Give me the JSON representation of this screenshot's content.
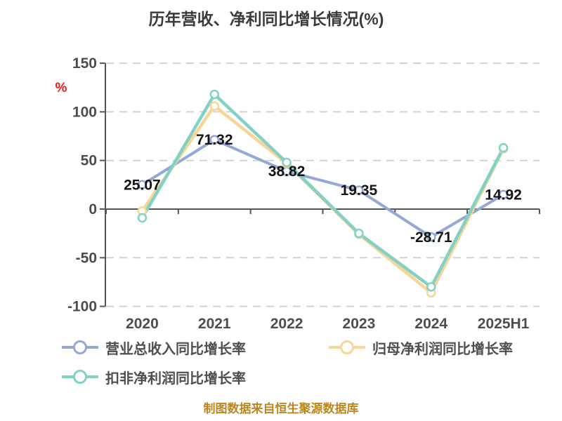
{
  "title": "历年营收、净利同比增长情况(%)",
  "y_axis_unit": "%",
  "caption": "制图数据来自恒生聚源数据库",
  "colors": {
    "revenue_line": "#93a8d6",
    "net_profit_line": "#f7d596",
    "non_gaap_line": "#82d1c7",
    "axis_line": "#555555",
    "grid_line": "#d2d2d2",
    "tick_text": "#4d4d4d",
    "data_label_text": "#141414",
    "legend_text": "#4f4f4f",
    "title_text": "#3b3b3b",
    "unit_text": "#e31c1c",
    "caption_text": "#bd861c",
    "marker_fill": "#ffffff"
  },
  "chart_data": {
    "type": "line",
    "title": "历年营收、净利同比增长情况(%)",
    "categories": [
      "2020",
      "2021",
      "2022",
      "2023",
      "2024",
      "2025H1"
    ],
    "series": [
      {
        "name": "营业总收入同比增长率",
        "color": "#93a8d6",
        "values": [
          25.07,
          71.32,
          38.82,
          19.35,
          -28.71,
          14.92
        ],
        "data_labels": true
      },
      {
        "name": "归母净利润同比增长率",
        "color": "#f7d596",
        "values": [
          -2,
          106,
          47,
          -26,
          -86,
          62
        ],
        "data_labels": false
      },
      {
        "name": "扣非净利润同比增长率",
        "color": "#82d1c7",
        "values": [
          -9,
          118,
          48,
          -25,
          -80,
          63
        ],
        "data_labels": false
      }
    ],
    "ylabel": "%",
    "ylim": [
      -100,
      150
    ],
    "yticks": [
      150,
      100,
      50,
      0,
      -50,
      -100
    ],
    "grid": "horizontal-dashed",
    "x_axis_position": "zero-line",
    "legend_position": "bottom-left",
    "note": "只有第一条系列带数值标签；另两条按网格线估读"
  }
}
